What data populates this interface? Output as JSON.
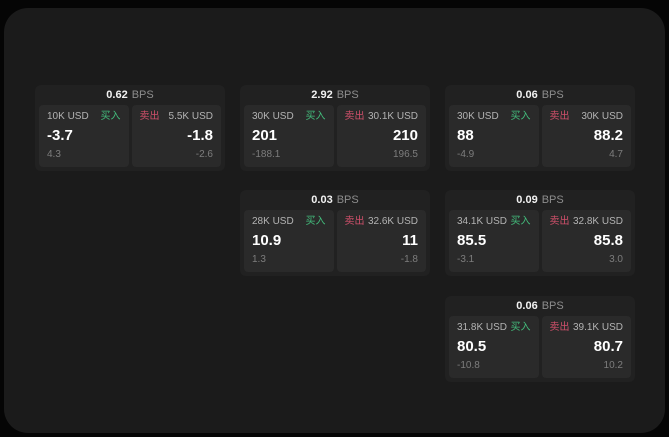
{
  "labels": {
    "bps": "BPS",
    "buy": "买入",
    "sell": "卖出"
  },
  "colors": {
    "buy_tag": "#43bd7c",
    "sell_tag": "#d0506b",
    "window_bg": "#1b1b1b",
    "card_bg": "#212121",
    "panel_bg": "#2a2a2a"
  },
  "cards": [
    {
      "bps": "0.62",
      "buy": {
        "amount": "10K USD",
        "price": "-3.7",
        "sub": "4.3"
      },
      "sell": {
        "amount": "5.5K USD",
        "price": "-1.8",
        "sub": "-2.6"
      }
    },
    {
      "bps": "2.92",
      "buy": {
        "amount": "30K USD",
        "price": "201",
        "sub": "-188.1"
      },
      "sell": {
        "amount": "30.1K USD",
        "price": "210",
        "sub": "196.5"
      }
    },
    {
      "bps": "0.06",
      "buy": {
        "amount": "30K USD",
        "price": "88",
        "sub": "-4.9"
      },
      "sell": {
        "amount": "30K USD",
        "price": "88.2",
        "sub": "4.7"
      }
    },
    {
      "bps": "0.03",
      "buy": {
        "amount": "28K USD",
        "price": "10.9",
        "sub": "1.3"
      },
      "sell": {
        "amount": "32.6K USD",
        "price": "11",
        "sub": "-1.8"
      }
    },
    {
      "bps": "0.09",
      "buy": {
        "amount": "34.1K USD",
        "price": "85.5",
        "sub": "-3.1"
      },
      "sell": {
        "amount": "32.8K USD",
        "price": "85.8",
        "sub": "3.0"
      }
    },
    {
      "bps": "0.06",
      "buy": {
        "amount": "31.8K USD",
        "price": "80.5",
        "sub": "-10.8"
      },
      "sell": {
        "amount": "39.1K USD",
        "price": "80.7",
        "sub": "10.2"
      }
    }
  ]
}
